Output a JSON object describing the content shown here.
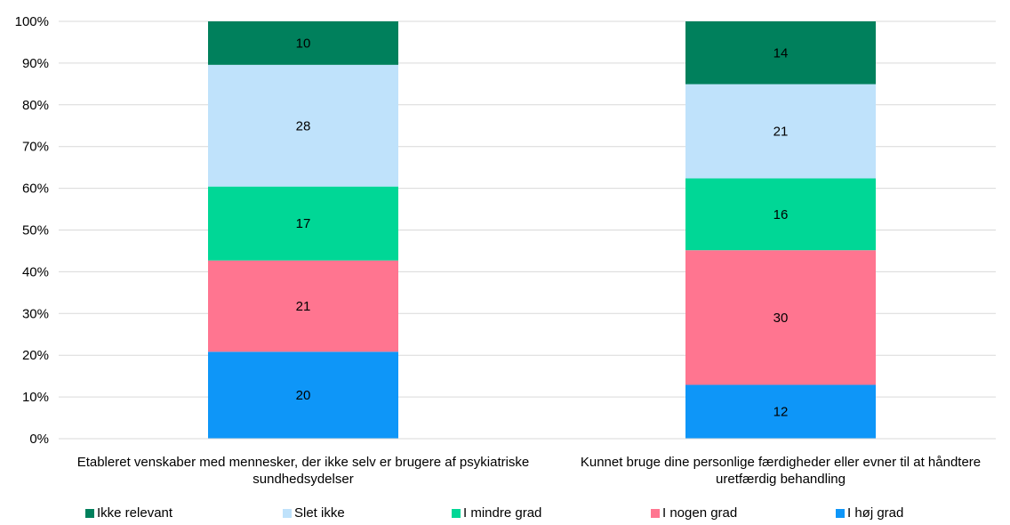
{
  "chart_data": {
    "type": "bar",
    "stacked": true,
    "percent_stacked": true,
    "categories": [
      "Etableret venskaber med mennesker, der ikke selv er brugere af psykiatriske sundhedsydelser",
      "Kunnet bruge dine personlige færdigheder eller evner til at håndtere uretfærdig behandling"
    ],
    "series": [
      {
        "name": "I høj grad",
        "color": "#0E96F8",
        "values": [
          20,
          12
        ]
      },
      {
        "name": "I nogen grad",
        "color": "#FF7590",
        "values": [
          21,
          30
        ]
      },
      {
        "name": "I mindre grad",
        "color": "#00D796",
        "values": [
          17,
          16
        ]
      },
      {
        "name": "Slet ikke",
        "color": "#BFE2FB",
        "values": [
          28,
          21
        ]
      },
      {
        "name": "Ikke relevant",
        "color": "#00805C",
        "values": [
          10,
          14
        ]
      }
    ],
    "legend_order": [
      "Ikke relevant",
      "Slet ikke",
      "I mindre grad",
      "I nogen grad",
      "I høj grad"
    ],
    "y_ticks": [
      "0%",
      "10%",
      "20%",
      "30%",
      "40%",
      "50%",
      "60%",
      "70%",
      "80%",
      "90%",
      "100%"
    ],
    "ylim": [
      0,
      100
    ],
    "grid": true,
    "legend_position": "bottom"
  }
}
